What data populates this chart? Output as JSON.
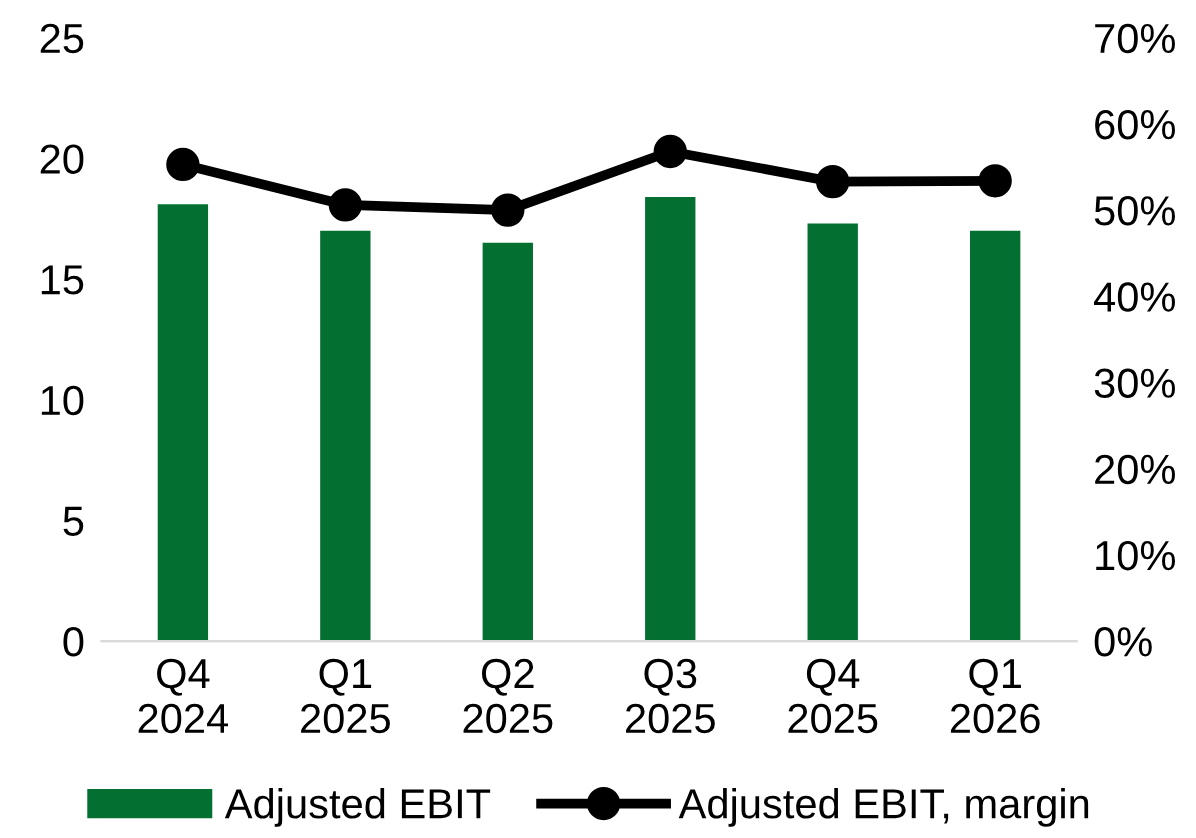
{
  "chart_data": {
    "type": "bar",
    "categories": [
      "Q4\n2024",
      "Q1\n2025",
      "Q2\n2025",
      "Q3\n2025",
      "Q4\n2025",
      "Q1\n2026"
    ],
    "series": [
      {
        "name": "Adjusted EBIT",
        "color": "#037032",
        "values": [
          18.1,
          17.0,
          16.5,
          18.4,
          17.3,
          17.0
        ]
      },
      {
        "name": "Adjusted EBIT, margin",
        "type": "line",
        "axis": "y2",
        "color": "#000000",
        "marker": "circle",
        "values": [
          55.3,
          50.6,
          50.0,
          56.8,
          53.3,
          53.4
        ]
      }
    ],
    "ylim": [
      0,
      25
    ],
    "yticks": [
      0,
      5,
      10,
      15,
      20,
      25
    ],
    "y2lim": [
      0,
      70
    ],
    "y2ticks": [
      {
        "value": 0,
        "label": "0%"
      },
      {
        "value": 10,
        "label": "10%"
      },
      {
        "value": 20,
        "label": "20%"
      },
      {
        "value": 30,
        "label": "30%"
      },
      {
        "value": 40,
        "label": "40%"
      },
      {
        "value": 50,
        "label": "50%"
      },
      {
        "value": 60,
        "label": "60%"
      },
      {
        "value": 70,
        "label": "70%"
      }
    ],
    "grid": false,
    "legend": "bottom"
  }
}
